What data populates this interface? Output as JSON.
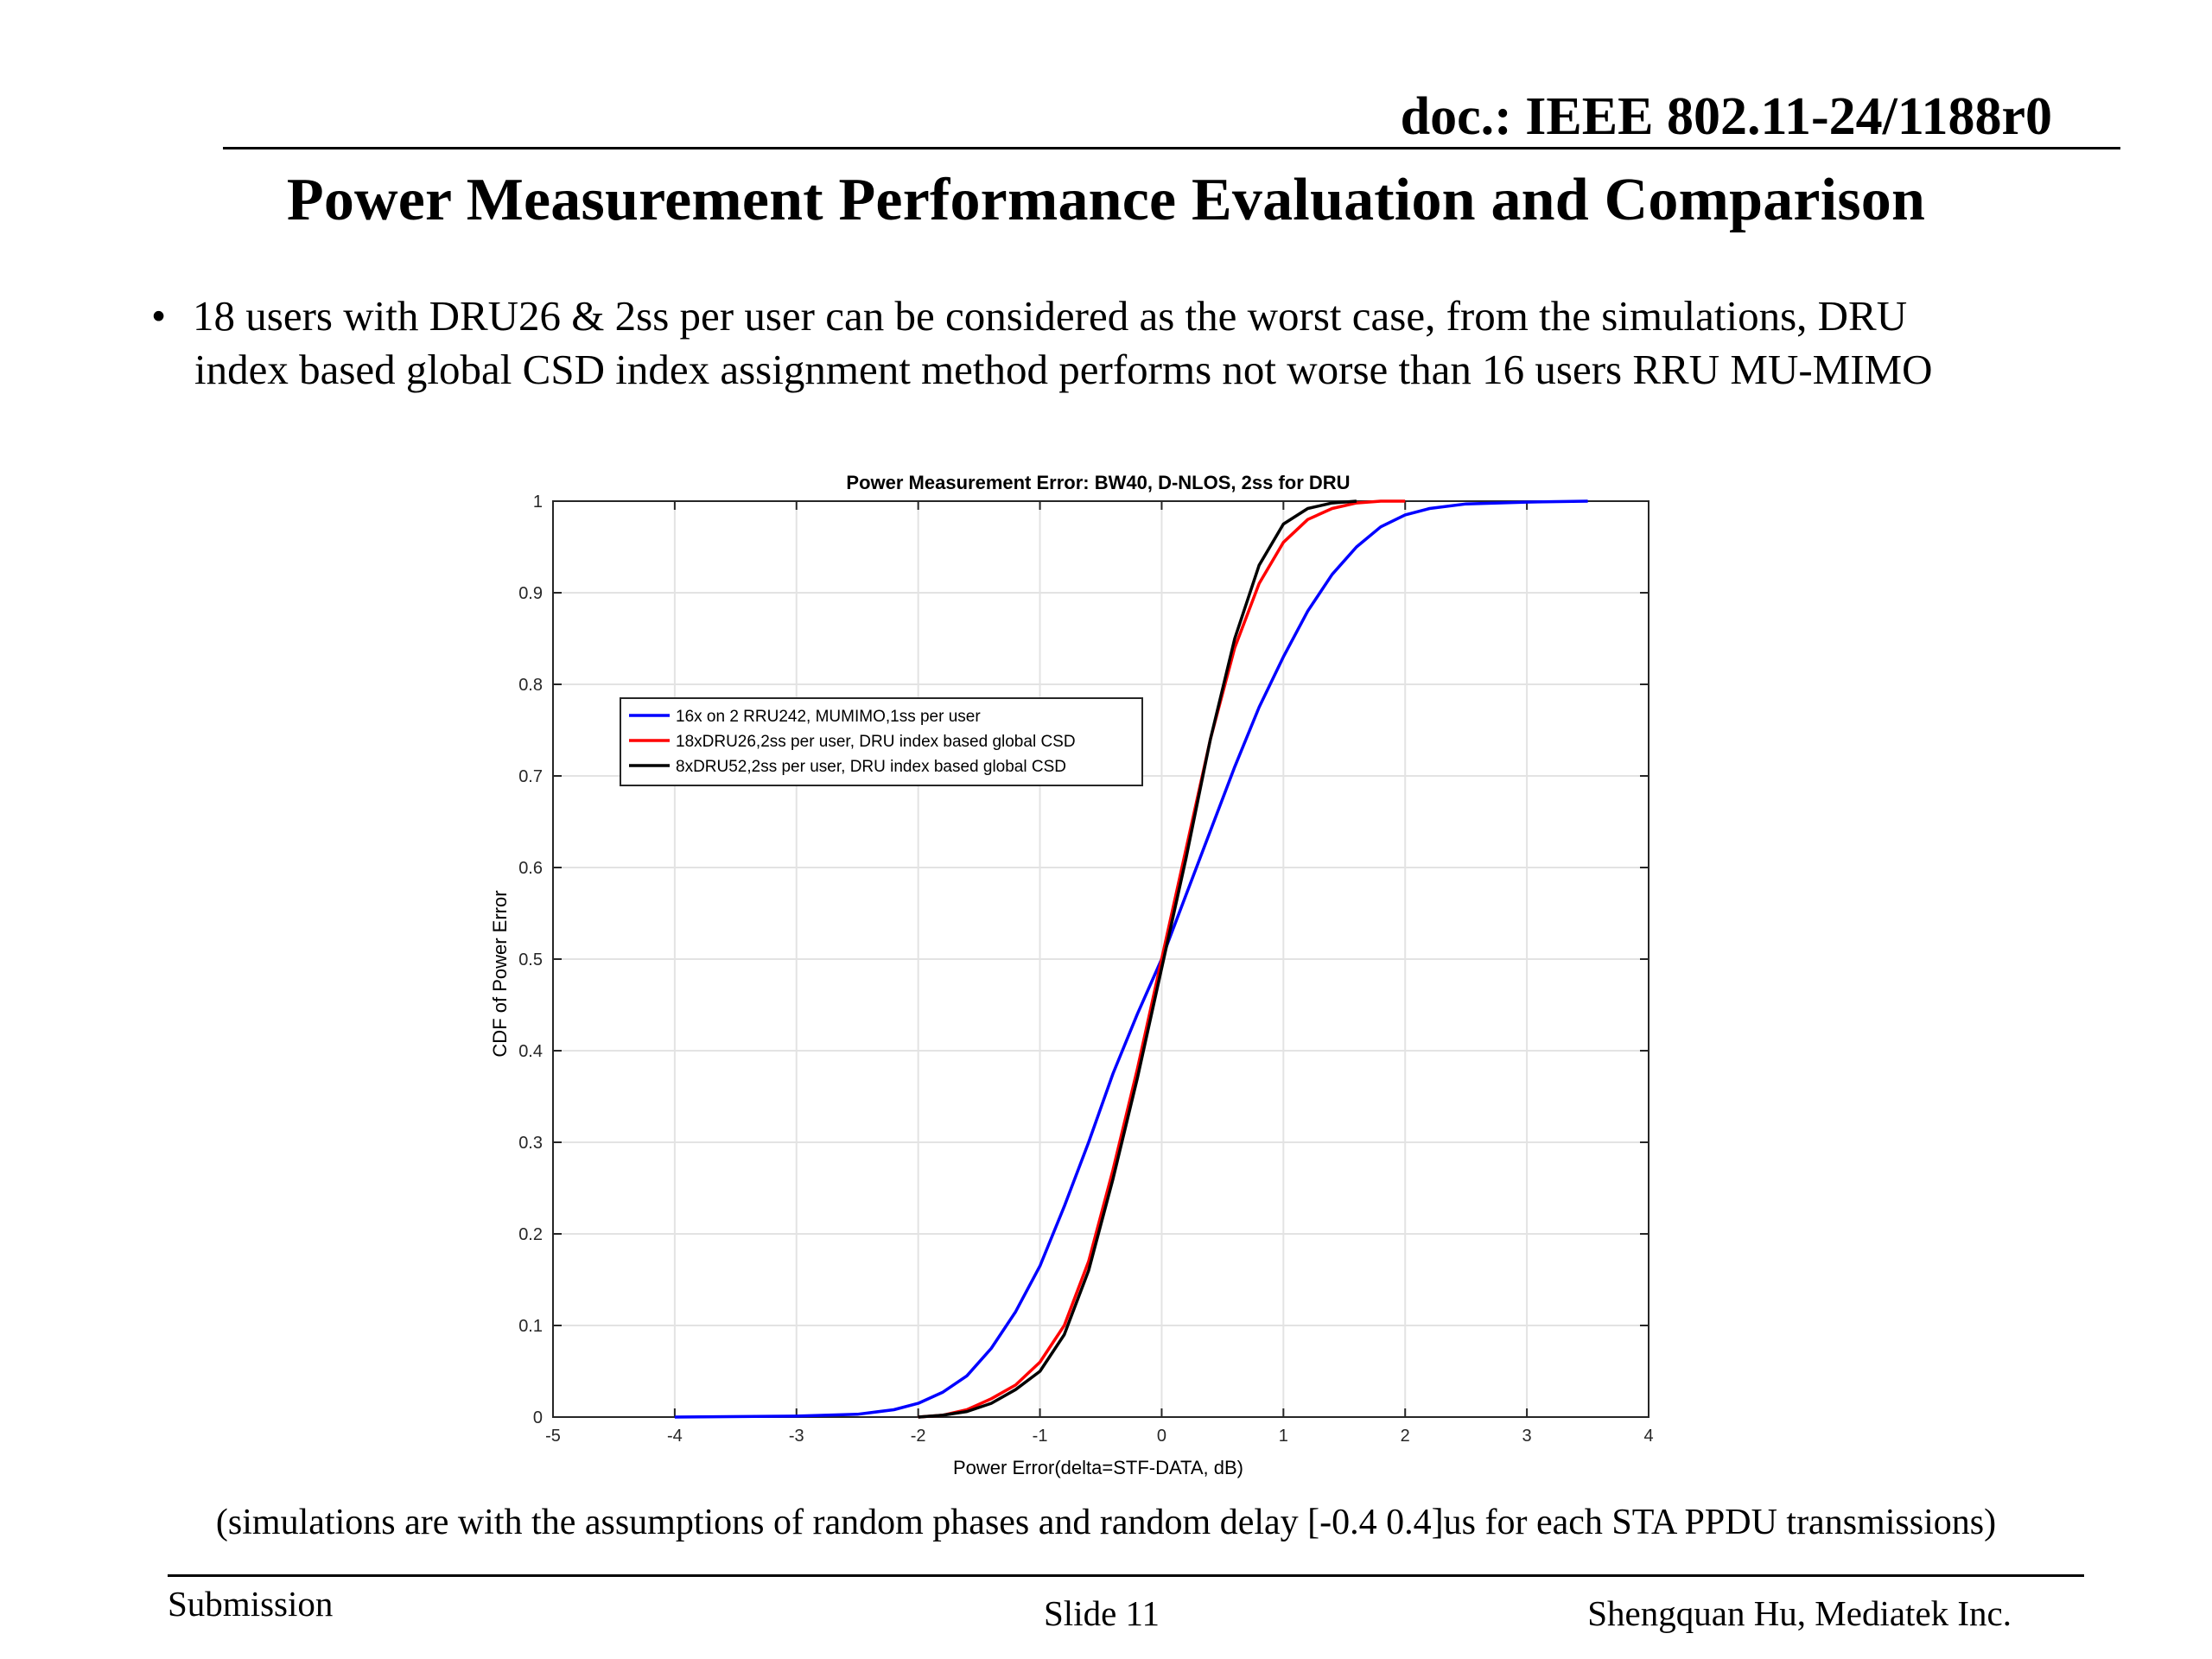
{
  "header": {
    "doc_id": "doc.: IEEE 802.11-24/1188r0",
    "title": "Power Measurement Performance Evaluation and Comparison"
  },
  "bullet": {
    "line1": "18 users with DRU26 & 2ss per user can be considered as the worst case, from the simulations, DRU",
    "line2": "index based global CSD index assignment method performs not worse than 16 users RRU MU-MIMO"
  },
  "footnote": "(simulations are with the assumptions of  random phases and random delay [-0.4 0.4]us for each STA PPDU transmissions)",
  "footer": {
    "left": "Submission",
    "center": "Slide 11",
    "right": "Shengquan Hu, Mediatek Inc."
  },
  "chart_data": {
    "type": "line",
    "title": "Power Measurement Error: BW40, D-NLOS, 2ss for DRU",
    "xlabel": "Power Error(delta=STF-DATA, dB)",
    "ylabel": "CDF of Power Error",
    "xlim": [
      -5,
      4
    ],
    "ylim": [
      0,
      1
    ],
    "xticks": [
      -5,
      -4,
      -3,
      -2,
      -1,
      0,
      1,
      2,
      3,
      4
    ],
    "yticks": [
      0,
      0.1,
      0.2,
      0.3,
      0.4,
      0.5,
      0.6,
      0.7,
      0.8,
      0.9,
      1
    ],
    "xtick_labels": [
      "-5",
      "-4",
      "-3",
      "-2",
      "-1",
      "0",
      "1",
      "2",
      "3",
      "4"
    ],
    "ytick_labels": [
      "0",
      "0.1",
      "0.2",
      "0.3",
      "0.4",
      "0.5",
      "0.6",
      "0.7",
      "0.8",
      "0.9",
      "1"
    ],
    "grid": true,
    "legend_position": "upper-left",
    "series": [
      {
        "name": "16x on 2 RRU242, MUMIMO,1ss per user",
        "color": "#0000ff",
        "x": [
          -4.0,
          -3.0,
          -2.5,
          -2.2,
          -2.0,
          -1.8,
          -1.6,
          -1.4,
          -1.2,
          -1.0,
          -0.8,
          -0.6,
          -0.4,
          -0.2,
          0.0,
          0.2,
          0.4,
          0.6,
          0.8,
          1.0,
          1.2,
          1.4,
          1.6,
          1.8,
          2.0,
          2.2,
          2.5,
          3.0,
          3.5
        ],
        "y": [
          0.0,
          0.001,
          0.003,
          0.008,
          0.015,
          0.027,
          0.045,
          0.075,
          0.115,
          0.165,
          0.23,
          0.3,
          0.375,
          0.44,
          0.5,
          0.57,
          0.64,
          0.71,
          0.775,
          0.83,
          0.88,
          0.92,
          0.95,
          0.972,
          0.985,
          0.992,
          0.997,
          0.999,
          1.0
        ]
      },
      {
        "name": "18xDRU26,2ss per user, DRU index based global CSD",
        "color": "#ff0000",
        "x": [
          -2.0,
          -1.8,
          -1.6,
          -1.4,
          -1.2,
          -1.0,
          -0.8,
          -0.6,
          -0.4,
          -0.2,
          0.0,
          0.2,
          0.4,
          0.6,
          0.8,
          1.0,
          1.2,
          1.4,
          1.6,
          1.8,
          2.0
        ],
        "y": [
          0.0,
          0.002,
          0.008,
          0.02,
          0.035,
          0.06,
          0.1,
          0.17,
          0.27,
          0.38,
          0.5,
          0.62,
          0.74,
          0.84,
          0.91,
          0.955,
          0.98,
          0.992,
          0.998,
          1.0,
          1.0
        ]
      },
      {
        "name": "8xDRU52,2ss per user, DRU index based global CSD",
        "color": "#000000",
        "x": [
          -2.0,
          -1.8,
          -1.6,
          -1.4,
          -1.2,
          -1.0,
          -0.8,
          -0.6,
          -0.4,
          -0.2,
          0.0,
          0.2,
          0.4,
          0.6,
          0.8,
          1.0,
          1.2,
          1.4,
          1.6
        ],
        "y": [
          0.0,
          0.002,
          0.006,
          0.015,
          0.03,
          0.05,
          0.09,
          0.16,
          0.26,
          0.37,
          0.49,
          0.61,
          0.74,
          0.85,
          0.93,
          0.975,
          0.992,
          0.998,
          1.0
        ]
      }
    ]
  }
}
